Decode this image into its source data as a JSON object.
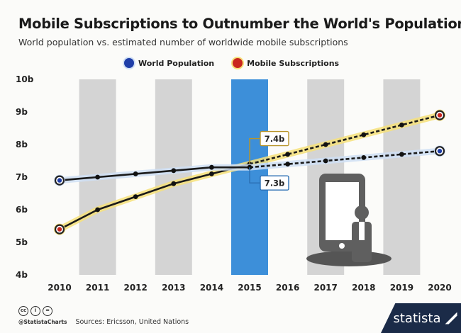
{
  "chart_data": {
    "type": "line",
    "title": "Mobile Subscriptions to Outnumber the World's Population",
    "subtitle": "World population vs. estimated number of worldwide mobile subscriptions",
    "categories": [
      "2010",
      "2011",
      "2012",
      "2013",
      "2014",
      "2015",
      "2016",
      "2017",
      "2018",
      "2019",
      "2020"
    ],
    "series": [
      {
        "name": "World Population",
        "color": "#1f3ea8",
        "values": [
          6.9,
          7.0,
          7.1,
          7.2,
          7.3,
          7.3,
          7.4,
          7.5,
          7.6,
          7.7,
          7.8
        ]
      },
      {
        "name": "Mobile Subscriptions",
        "color": "#c9261e",
        "values": [
          5.4,
          6.0,
          6.4,
          6.8,
          7.1,
          7.4,
          7.7,
          8.0,
          8.3,
          8.6,
          8.9
        ]
      }
    ],
    "projected_from": "2015",
    "highlight_category": "2015",
    "y_ticks": [
      "4b",
      "5b",
      "6b",
      "7b",
      "8b",
      "9b",
      "10b"
    ],
    "ylim": [
      4,
      10
    ],
    "annotations": [
      {
        "text": "7.4b",
        "series": "Mobile Subscriptions",
        "category": "2015"
      },
      {
        "text": "7.3b",
        "series": "World Population",
        "category": "2015"
      }
    ],
    "legend_position": "top-center",
    "grid": false
  },
  "footer": {
    "handle": "@StatistaCharts",
    "sources": "Sources: Ericsson, United Nations",
    "brand": "statista",
    "cc_icons": [
      "cc-icon",
      "by-icon",
      "nd-icon"
    ]
  },
  "colors": {
    "band_grey": "#d4d4d4",
    "band_highlight": "#3d8fd9",
    "glow_yellow": "#f6e07a",
    "glow_blue": "#cfdff5"
  }
}
